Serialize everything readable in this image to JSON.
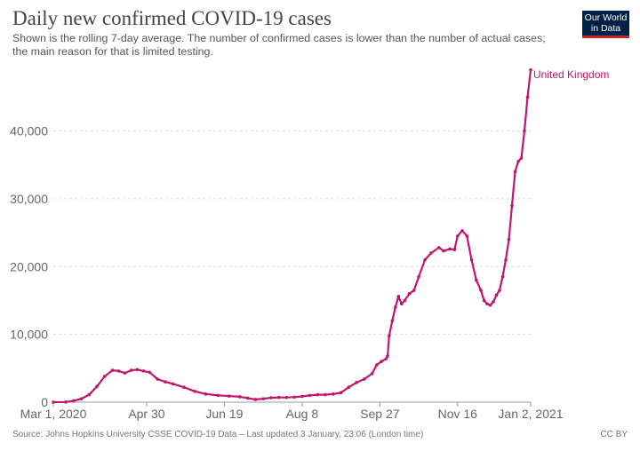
{
  "header": {
    "title": "Daily new confirmed COVID-19 cases",
    "subtitle": "Shown is the rolling 7-day average. The number of confirmed cases is lower than the number of actual cases; the main reason for that is limited testing.",
    "logo_line1": "Our World",
    "logo_line2": "in Data"
  },
  "footer": {
    "source": "Source: Johns Hopkins University CSSE COVID-19 Data – Last updated 3 January, 23:06 (London time)",
    "license": "CC BY"
  },
  "colors": {
    "series": "#c3156c",
    "grid": "#dddddd",
    "axis": "#666666"
  },
  "chart_data": {
    "type": "line",
    "title": "Daily new confirmed COVID-19 cases",
    "xlabel": "",
    "ylabel": "",
    "xlim": [
      "2020-03-01",
      "2021-01-02"
    ],
    "ylim": [
      0,
      49000
    ],
    "grid": "horizontal",
    "x_ticks": [
      {
        "date": "2020-03-01",
        "label": "Mar 1, 2020"
      },
      {
        "date": "2020-04-30",
        "label": "Apr 30"
      },
      {
        "date": "2020-06-19",
        "label": "Jun 19"
      },
      {
        "date": "2020-08-08",
        "label": "Aug 8"
      },
      {
        "date": "2020-09-27",
        "label": "Sep 27"
      },
      {
        "date": "2020-11-16",
        "label": "Nov 16"
      },
      {
        "date": "2021-01-02",
        "label": "Jan 2, 2021"
      }
    ],
    "y_ticks": [
      {
        "value": 0,
        "label": "0"
      },
      {
        "value": 10000,
        "label": "10,000"
      },
      {
        "value": 20000,
        "label": "20,000"
      },
      {
        "value": 30000,
        "label": "30,000"
      },
      {
        "value": 40000,
        "label": "40,000"
      }
    ],
    "series": [
      {
        "name": "United Kingdom",
        "points": [
          [
            "2020-03-01",
            0
          ],
          [
            "2020-03-09",
            20
          ],
          [
            "2020-03-14",
            200
          ],
          [
            "2020-03-19",
            500
          ],
          [
            "2020-03-24",
            1100
          ],
          [
            "2020-03-29",
            2300
          ],
          [
            "2020-04-03",
            3800
          ],
          [
            "2020-04-08",
            4700
          ],
          [
            "2020-04-12",
            4600
          ],
          [
            "2020-04-16",
            4300
          ],
          [
            "2020-04-20",
            4700
          ],
          [
            "2020-04-24",
            4800
          ],
          [
            "2020-04-28",
            4600
          ],
          [
            "2020-05-02",
            4400
          ],
          [
            "2020-05-07",
            3400
          ],
          [
            "2020-05-12",
            3000
          ],
          [
            "2020-05-17",
            2700
          ],
          [
            "2020-05-24",
            2200
          ],
          [
            "2020-05-31",
            1600
          ],
          [
            "2020-06-07",
            1200
          ],
          [
            "2020-06-15",
            1000
          ],
          [
            "2020-06-22",
            900
          ],
          [
            "2020-06-29",
            800
          ],
          [
            "2020-07-04",
            600
          ],
          [
            "2020-07-09",
            400
          ],
          [
            "2020-07-14",
            500
          ],
          [
            "2020-07-19",
            650
          ],
          [
            "2020-07-24",
            700
          ],
          [
            "2020-07-29",
            700
          ],
          [
            "2020-08-03",
            750
          ],
          [
            "2020-08-08",
            850
          ],
          [
            "2020-08-13",
            1000
          ],
          [
            "2020-08-18",
            1100
          ],
          [
            "2020-08-23",
            1100
          ],
          [
            "2020-08-28",
            1200
          ],
          [
            "2020-09-02",
            1400
          ],
          [
            "2020-09-07",
            2200
          ],
          [
            "2020-09-12",
            2900
          ],
          [
            "2020-09-17",
            3400
          ],
          [
            "2020-09-22",
            4200
          ],
          [
            "2020-09-25",
            5500
          ],
          [
            "2020-09-28",
            6000
          ],
          [
            "2020-10-01",
            6400
          ],
          [
            "2020-10-02",
            6800
          ],
          [
            "2020-10-03",
            9800
          ],
          [
            "2020-10-05",
            12000
          ],
          [
            "2020-10-07",
            14000
          ],
          [
            "2020-10-09",
            15600
          ],
          [
            "2020-10-11",
            14500
          ],
          [
            "2020-10-13",
            15000
          ],
          [
            "2020-10-16",
            16000
          ],
          [
            "2020-10-19",
            16500
          ],
          [
            "2020-10-22",
            18500
          ],
          [
            "2020-10-26",
            21000
          ],
          [
            "2020-10-30",
            22000
          ],
          [
            "2020-11-04",
            22800
          ],
          [
            "2020-11-07",
            22300
          ],
          [
            "2020-11-11",
            22600
          ],
          [
            "2020-11-14",
            22500
          ],
          [
            "2020-11-16",
            24500
          ],
          [
            "2020-11-19",
            25300
          ],
          [
            "2020-11-22",
            24500
          ],
          [
            "2020-11-25",
            21000
          ],
          [
            "2020-11-28",
            18000
          ],
          [
            "2020-12-01",
            16500
          ],
          [
            "2020-12-03",
            15000
          ],
          [
            "2020-12-05",
            14500
          ],
          [
            "2020-12-07",
            14300
          ],
          [
            "2020-12-09",
            14800
          ],
          [
            "2020-12-11",
            15800
          ],
          [
            "2020-12-13",
            16500
          ],
          [
            "2020-12-15",
            18500
          ],
          [
            "2020-12-17",
            21000
          ],
          [
            "2020-12-19",
            24000
          ],
          [
            "2020-12-21",
            29000
          ],
          [
            "2020-12-23",
            34000
          ],
          [
            "2020-12-25",
            35500
          ],
          [
            "2020-12-27",
            36000
          ],
          [
            "2020-12-29",
            40000
          ],
          [
            "2020-12-31",
            45000
          ],
          [
            "2021-01-02",
            49000
          ]
        ]
      }
    ]
  }
}
